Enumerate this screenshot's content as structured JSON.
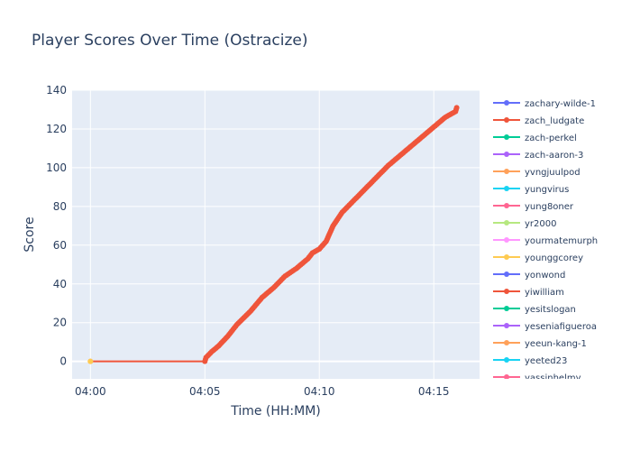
{
  "chart_data": {
    "type": "line",
    "title": "Player Scores Over Time (Ostracize)",
    "xlabel": "Time (HH:MM)",
    "ylabel": "Score",
    "x_ticks": [
      "04:00",
      "04:05",
      "04:10",
      "04:15"
    ],
    "x_tick_minutes": [
      0,
      5,
      10,
      15
    ],
    "xlim_minutes": [
      -0.8,
      17.0
    ],
    "y_ticks": [
      0,
      20,
      40,
      60,
      80,
      100,
      120,
      140
    ],
    "ylim": [
      -9,
      140
    ],
    "grid": true,
    "legend_position": "right",
    "series": [
      {
        "name": "zachary-wilde-1",
        "color": "#636efa",
        "x_minutes": [],
        "y": []
      },
      {
        "name": "zach_ludgate",
        "color": "#EF553B",
        "x_minutes": [
          0,
          5.0,
          5.05,
          5.3,
          5.6,
          6.0,
          6.4,
          7.0,
          7.5,
          8.0,
          8.5,
          9.0,
          9.5,
          9.7,
          10.0,
          10.3,
          10.6,
          11.0,
          11.5,
          12.0,
          12.5,
          13.0,
          13.5,
          14.0,
          14.5,
          15.0,
          15.5,
          15.95,
          16.0
        ],
        "y": [
          0,
          0,
          2,
          5,
          8,
          13,
          19,
          26,
          33,
          38,
          44,
          48,
          53,
          56,
          58,
          62,
          70,
          77,
          83,
          89,
          95,
          101,
          106,
          111,
          116,
          121,
          126,
          129,
          131
        ]
      },
      {
        "name": "zach-perkel",
        "color": "#00cc96",
        "x_minutes": [],
        "y": []
      },
      {
        "name": "zach-aaron-3",
        "color": "#ab63fa",
        "x_minutes": [],
        "y": []
      },
      {
        "name": "yvngjuulpod",
        "color": "#FFA15A",
        "x_minutes": [
          0
        ],
        "y": [
          0
        ]
      },
      {
        "name": "yungvirus",
        "color": "#19d3f3",
        "x_minutes": [],
        "y": []
      },
      {
        "name": "yung8oner",
        "color": "#FF6692",
        "x_minutes": [],
        "y": []
      },
      {
        "name": "yr2000",
        "color": "#B6E880",
        "x_minutes": [],
        "y": []
      },
      {
        "name": "yourmatemurph",
        "color": "#FF97FF",
        "x_minutes": [],
        "y": []
      },
      {
        "name": "younggcorey",
        "color": "#FECB52",
        "x_minutes": [
          0
        ],
        "y": [
          0
        ]
      },
      {
        "name": "yonwond",
        "color": "#636efa",
        "x_minutes": [],
        "y": []
      },
      {
        "name": "yiwilliam",
        "color": "#EF553B",
        "x_minutes": [],
        "y": []
      },
      {
        "name": "yesitslogan",
        "color": "#00cc96",
        "x_minutes": [],
        "y": []
      },
      {
        "name": "yeseniafigueroa",
        "color": "#ab63fa",
        "x_minutes": [],
        "y": []
      },
      {
        "name": "yeeun-kang-1",
        "color": "#FFA15A",
        "x_minutes": [],
        "y": []
      },
      {
        "name": "yeeted23",
        "color": "#19d3f3",
        "x_minutes": [],
        "y": []
      },
      {
        "name": "yassinhelmy",
        "color": "#FF6692",
        "x_minutes": [],
        "y": []
      }
    ]
  }
}
